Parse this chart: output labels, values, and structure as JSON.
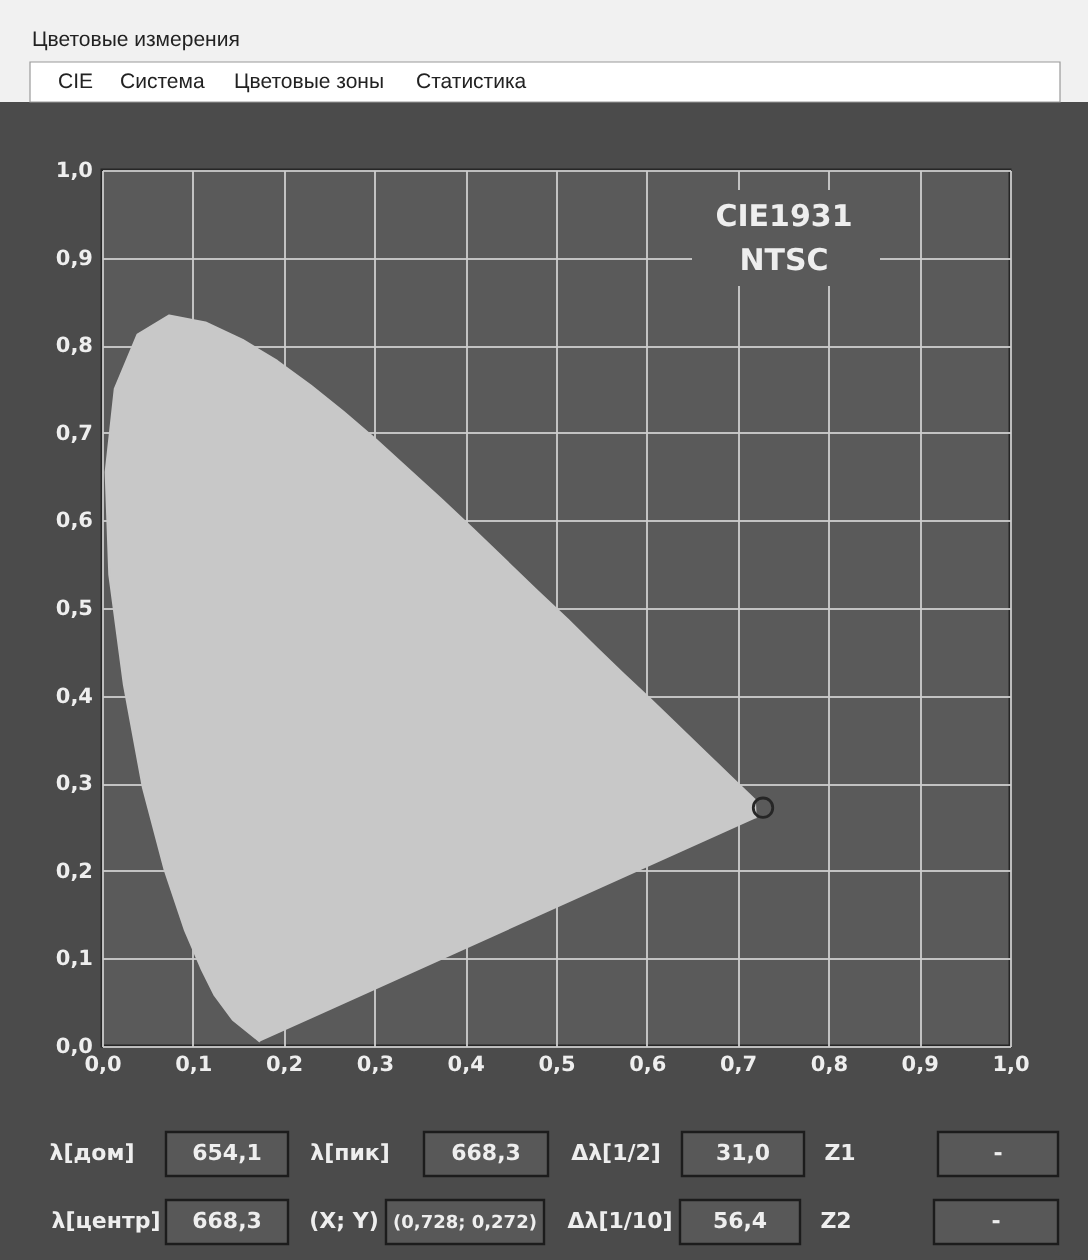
{
  "chart_data": {
    "type": "scatter",
    "title": "Цветовые измерения",
    "xlim": [
      0,
      1
    ],
    "ylim": [
      0,
      1
    ],
    "xticks": [
      {
        "value": 0,
        "label": "0,0"
      },
      {
        "value": 0.1,
        "label": "0,1"
      },
      {
        "value": 0.2,
        "label": "0,2"
      },
      {
        "value": 0.3,
        "label": "0,3"
      },
      {
        "value": 0.4,
        "label": "0,4"
      },
      {
        "value": 0.5,
        "label": "0,5"
      },
      {
        "value": 0.6,
        "label": "0,6"
      },
      {
        "value": 0.7,
        "label": "0,7"
      },
      {
        "value": 0.8,
        "label": "0,8"
      },
      {
        "value": 0.9,
        "label": "0,9"
      },
      {
        "value": 1,
        "label": "1,0"
      }
    ],
    "yticks": [
      {
        "value": 0,
        "label": "0,0"
      },
      {
        "value": 0.1,
        "label": "0,1"
      },
      {
        "value": 0.2,
        "label": "0,2"
      },
      {
        "value": 0.3,
        "label": "0,3"
      },
      {
        "value": 0.4,
        "label": "0,4"
      },
      {
        "value": 0.5,
        "label": "0,5"
      },
      {
        "value": 0.6,
        "label": "0,6"
      },
      {
        "value": 0.7,
        "label": "0,7"
      },
      {
        "value": 0.8,
        "label": "0,8"
      },
      {
        "value": 0.9,
        "label": "0,9"
      },
      {
        "value": 1,
        "label": "1,0"
      }
    ],
    "grid": true,
    "series": [
      {
        "type": "area",
        "color": "#c8c8c8",
        "x": [
          0.174,
          0.144,
          0.124,
          0.11,
          0.091,
          0.069,
          0.045,
          0.024,
          0.008,
          0.004,
          0.014,
          0.039,
          0.074,
          0.114,
          0.155,
          0.193,
          0.23,
          0.266,
          0.302,
          0.337,
          0.373,
          0.409,
          0.444,
          0.479,
          0.513,
          0.545,
          0.575,
          0.603,
          0.627,
          0.666,
          0.692,
          0.719,
          0.72
        ],
        "values": [
          0.005,
          0.03,
          0.058,
          0.087,
          0.133,
          0.201,
          0.295,
          0.413,
          0.538,
          0.655,
          0.75,
          0.812,
          0.834,
          0.826,
          0.806,
          0.782,
          0.754,
          0.724,
          0.692,
          0.659,
          0.625,
          0.59,
          0.555,
          0.52,
          0.487,
          0.454,
          0.424,
          0.397,
          0.373,
          0.334,
          0.308,
          0.281,
          0.26
        ]
      },
      {
        "color": "#262626",
        "marker": "circle",
        "x": [
          0.728
        ],
        "values": [
          0.272
        ]
      }
    ],
    "annotations": [
      "CIE",
      "Система",
      "Цветовые зоны",
      "Статистика",
      "CIE1931",
      "NTSC",
      "λ[дом]",
      "654,1",
      "λ[пик]",
      "668,3",
      "Δλ[1/2]",
      "31,0",
      "Z1",
      "-",
      "λ[центр]",
      "668,3",
      "(X; Y)",
      "(0,728; 0,272)",
      "Δλ[1/10]",
      "56,4",
      "Z2",
      "-"
    ]
  }
}
